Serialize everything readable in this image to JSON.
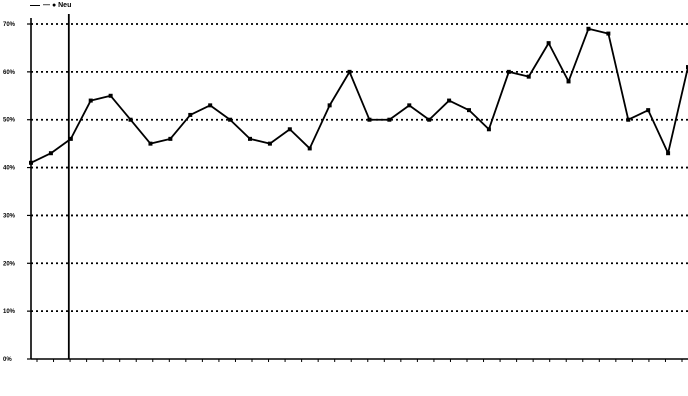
{
  "chart_data": {
    "type": "line",
    "title": "",
    "xlabel": "",
    "ylabel": "",
    "legend": {
      "position": "top-left",
      "label": "— ● Neu"
    },
    "grid": {
      "horizontal": true,
      "style": "dotted"
    },
    "ylim": [
      0,
      70
    ],
    "yticks": [
      {
        "value": 0,
        "label": "0%"
      },
      {
        "value": 10,
        "label": "10%"
      },
      {
        "value": 20,
        "label": "20%"
      },
      {
        "value": 30,
        "label": "30%"
      },
      {
        "value": 40,
        "label": "40%"
      },
      {
        "value": 50,
        "label": "50%"
      },
      {
        "value": 60,
        "label": "60%"
      },
      {
        "value": 70,
        "label": "70%"
      }
    ],
    "x_tick_count": 40,
    "x_tick_labels": [
      "",
      "",
      "",
      "",
      "",
      "",
      "",
      "",
      "",
      "",
      "",
      "",
      "",
      "",
      "",
      "",
      "",
      "",
      "",
      "",
      "",
      "",
      "",
      "",
      "",
      "",
      "",
      "",
      "",
      "",
      "",
      "",
      "",
      "",
      "",
      "",
      "",
      "",
      "",
      ""
    ],
    "vertical_marker_index": 2,
    "series": [
      {
        "name": "Neu",
        "color": "#000000",
        "values": [
          41,
          43,
          46,
          54,
          55,
          50,
          45,
          46,
          51,
          53,
          50,
          46,
          45,
          48,
          44,
          53,
          60,
          50,
          50,
          53,
          50,
          54,
          52,
          48,
          60,
          59,
          66,
          58,
          69,
          68,
          50,
          52,
          43,
          61
        ]
      }
    ]
  }
}
